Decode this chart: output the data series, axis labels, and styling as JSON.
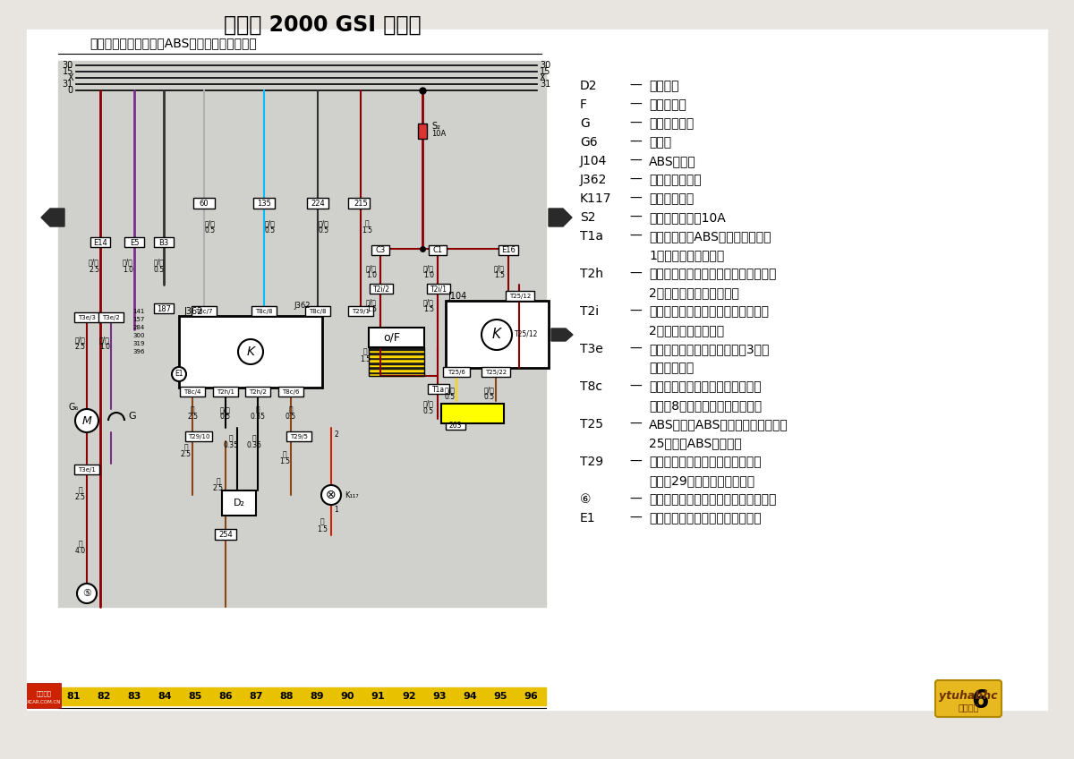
{
  "title": "桑塔纳 2000 GSI 电路图",
  "subtitle": "燃油泵、电子防盗器、ABS控制器、制动灯开关",
  "page_num": "6",
  "bottom_numbers": [
    "81",
    "82",
    "83",
    "84",
    "85",
    "86",
    "87",
    "88",
    "89",
    "90",
    "91",
    "92",
    "93",
    "94",
    "95",
    "96"
  ],
  "bottom_color": "#e8c200",
  "top_rail_labels_left": [
    "30",
    "15",
    "X",
    "31",
    "0"
  ],
  "top_rail_labels_right": [
    "30",
    "15",
    "X",
    "31"
  ],
  "legend_items": [
    [
      "D2",
      "读识线圈"
    ],
    [
      "F",
      "制动灯开关"
    ],
    [
      "G",
      "燃油表传感器"
    ],
    [
      "G6",
      "燃油泵"
    ],
    [
      "J104",
      "ABS控制器"
    ],
    [
      "J362",
      "防盗器控制单元"
    ],
    [
      "K117",
      "防盗器警告灯"
    ],
    [
      "S2",
      "制动灯保险丝，10A"
    ],
    [
      "T1a",
      "前大灯线束与ABS线束插头连接，"
    ],
    [
      "",
      "1针，在中央电器后面"
    ],
    [
      "T2h",
      "识读线圈与防盗器控制单元插头连接，"
    ],
    [
      "",
      "2针，在防盗器控制单元上"
    ],
    [
      "T2i",
      "前大灯线束与仪表板线束插头连接，"
    ],
    [
      "",
      "2针，在中央电器后面"
    ],
    [
      "T3e",
      "尾部线束与燃油箱插头连接，3针，"
    ],
    [
      "",
      "在燃油箱盖上"
    ],
    [
      "T8c",
      "仪表板线束与防盗器控制单元插头"
    ],
    [
      "",
      "连接，8针，在防盗器控制单元上"
    ],
    [
      "T25",
      "ABS线束与ABS控制单元插头连接，"
    ],
    [
      "",
      "25针，在ABS控制器上"
    ],
    [
      "T29",
      "仪表板线束与仪表板开关线束插头"
    ],
    [
      "",
      "连接，29针，在组合仪表下方"
    ],
    [
      "⑥",
      "接地点，在中央电器左侧星形接地爪上"
    ],
    [
      "E1",
      "接地连接线，在仪表板开关线束内"
    ]
  ],
  "colors": {
    "red_dark": "#8B0000",
    "red": "#cc2200",
    "purple": "#7B2D8B",
    "blue": "#1E90FF",
    "cyan": "#00BFFF",
    "black": "#000000",
    "brown": "#8B4513",
    "yellow": "#FFD700",
    "gray": "#909090",
    "gray_wire": "#b0b0b0",
    "bg_outer": "#e8e5e0",
    "bg_white": "#ffffff",
    "bg_gray_diagram": "#d0d0cc"
  }
}
